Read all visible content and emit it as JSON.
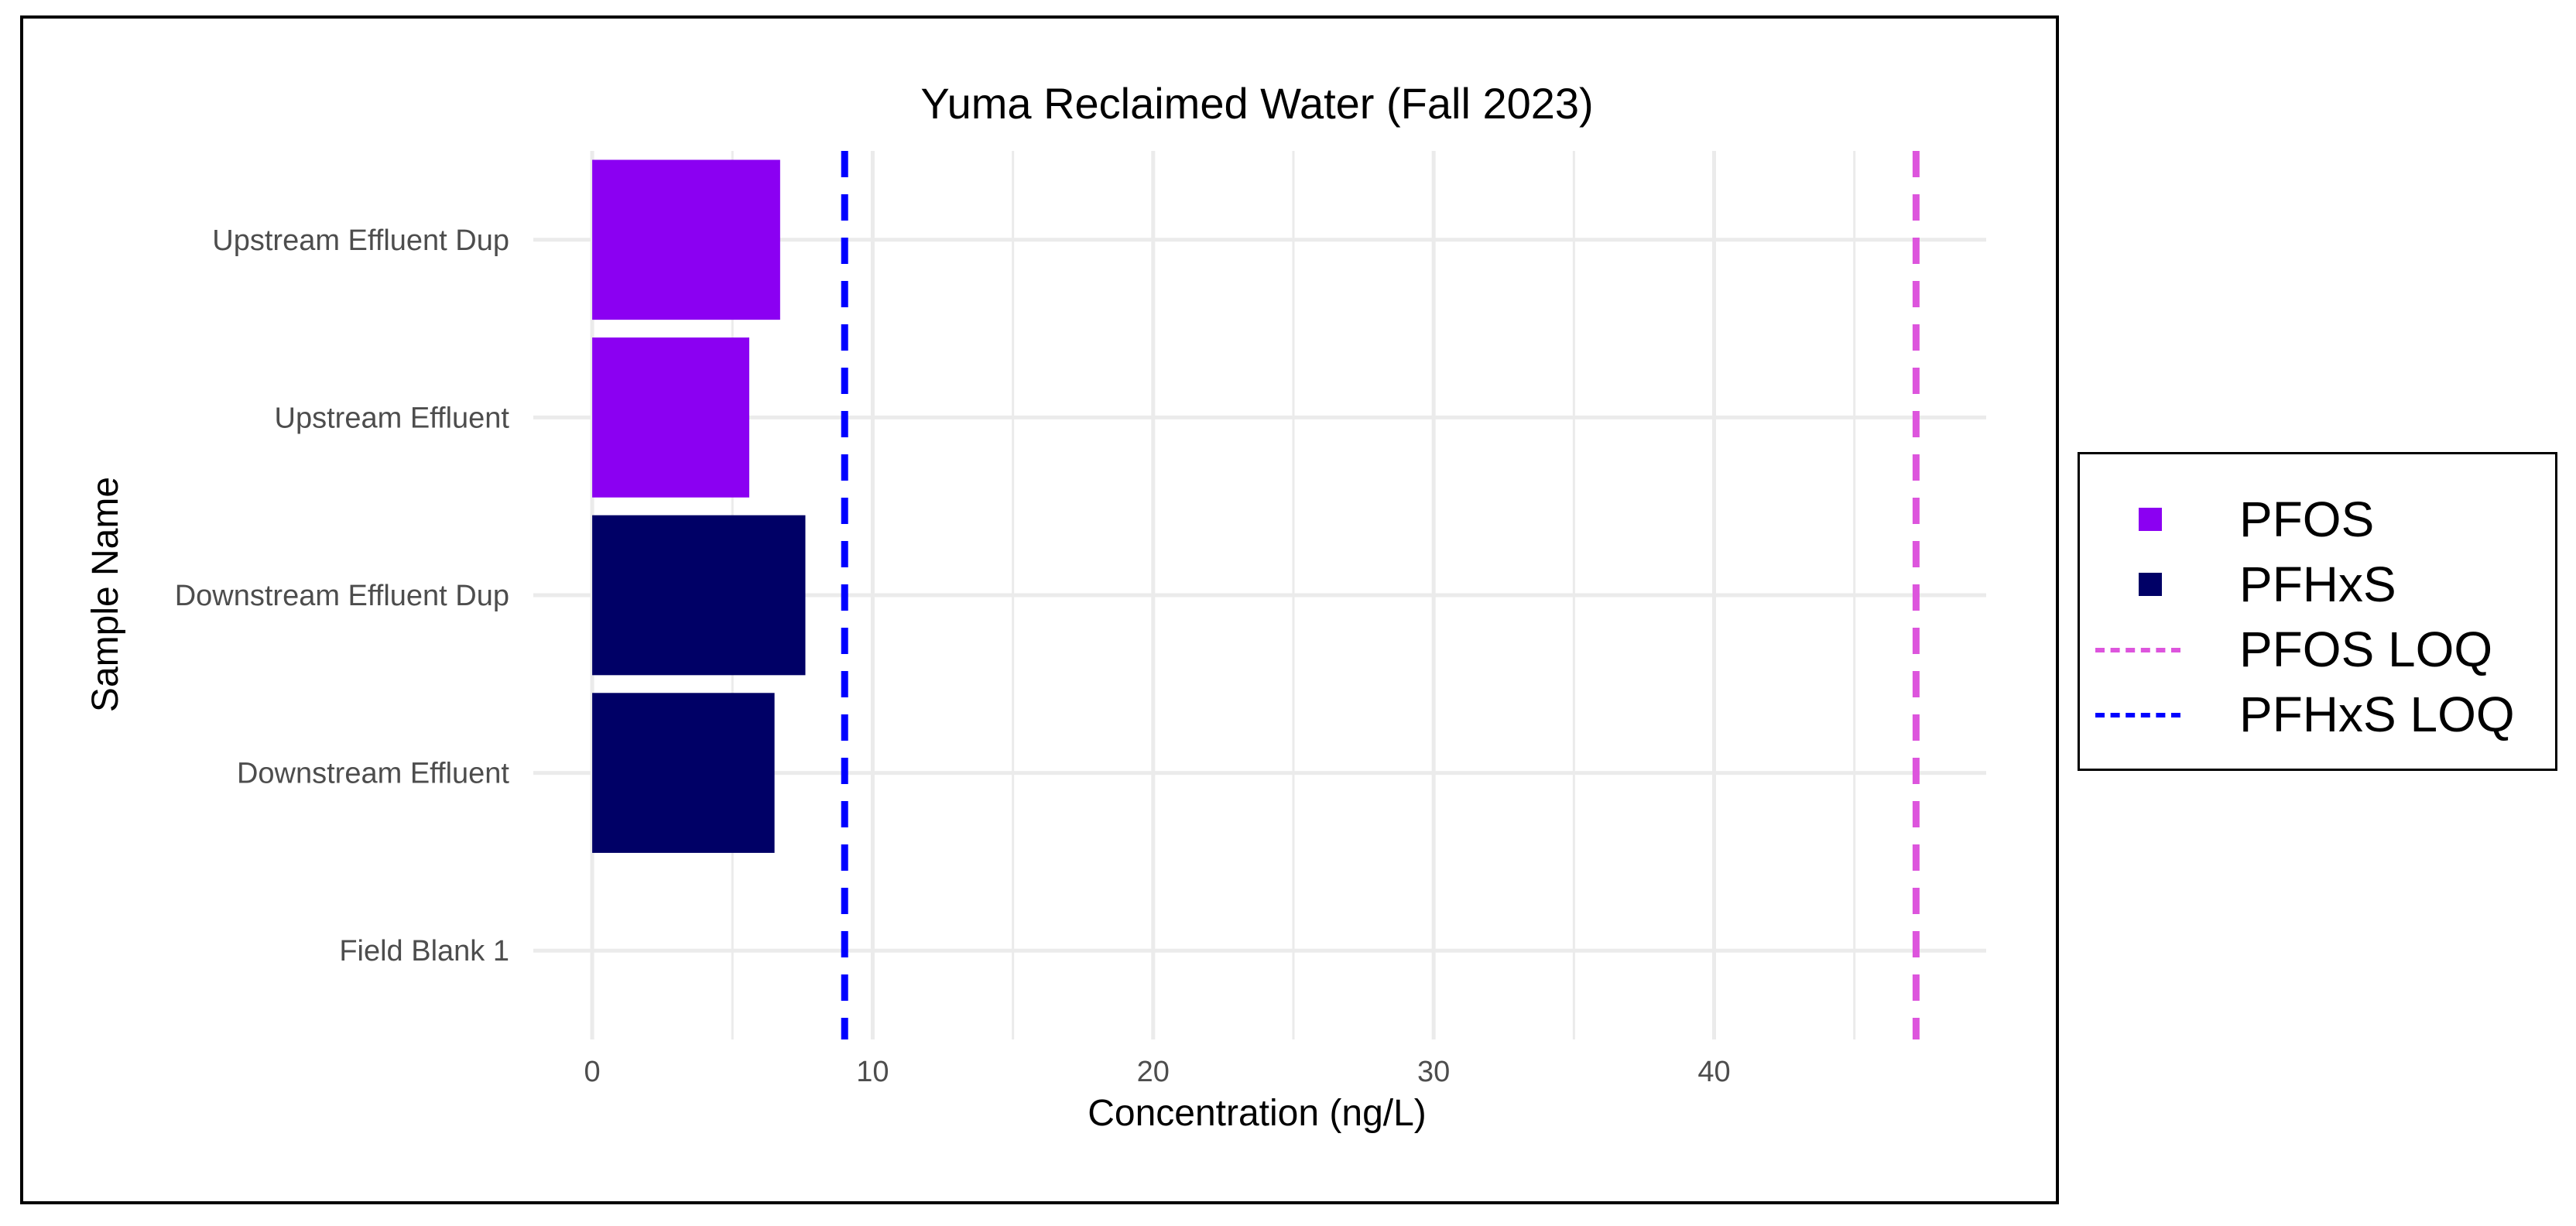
{
  "chart_data": {
    "type": "bar",
    "orientation": "horizontal",
    "title": "Yuma Reclaimed Water (Fall 2023)",
    "xlabel": "Concentration (ng/L)",
    "ylabel": "Sample Name",
    "categories": [
      "Field Blank 1",
      "Downstream Effluent",
      "Downstream Effluent Dup",
      "Upstream Effluent",
      "Upstream Effluent Dup"
    ],
    "series": [
      {
        "name": "PFOS",
        "color": "#8b00f2",
        "values": [
          null,
          null,
          null,
          5.6,
          6.7
        ]
      },
      {
        "name": "PFHxS",
        "color": "#000066",
        "values": [
          null,
          6.5,
          7.6,
          null,
          null
        ]
      }
    ],
    "reference_lines": [
      {
        "name": "PFOS LOQ",
        "x": 47.2,
        "color": "#dd55dd",
        "style": "dashed"
      },
      {
        "name": "PFHxS LOQ",
        "x": 9.0,
        "color": "#0000ff",
        "style": "dashed"
      }
    ],
    "x_ticks": [
      0,
      10,
      20,
      30,
      40
    ],
    "xlim": [
      -2.1,
      49.7
    ],
    "grid": true,
    "legend_position": "right"
  },
  "legend": [
    {
      "label": "PFOS",
      "kind": "square",
      "color": "#8b00f2"
    },
    {
      "label": "PFHxS",
      "kind": "square",
      "color": "#000066"
    },
    {
      "label": "PFOS LOQ",
      "kind": "dash",
      "color": "#dd55dd"
    },
    {
      "label": "PFHxS LOQ",
      "kind": "dash",
      "color": "#0000ff"
    }
  ]
}
